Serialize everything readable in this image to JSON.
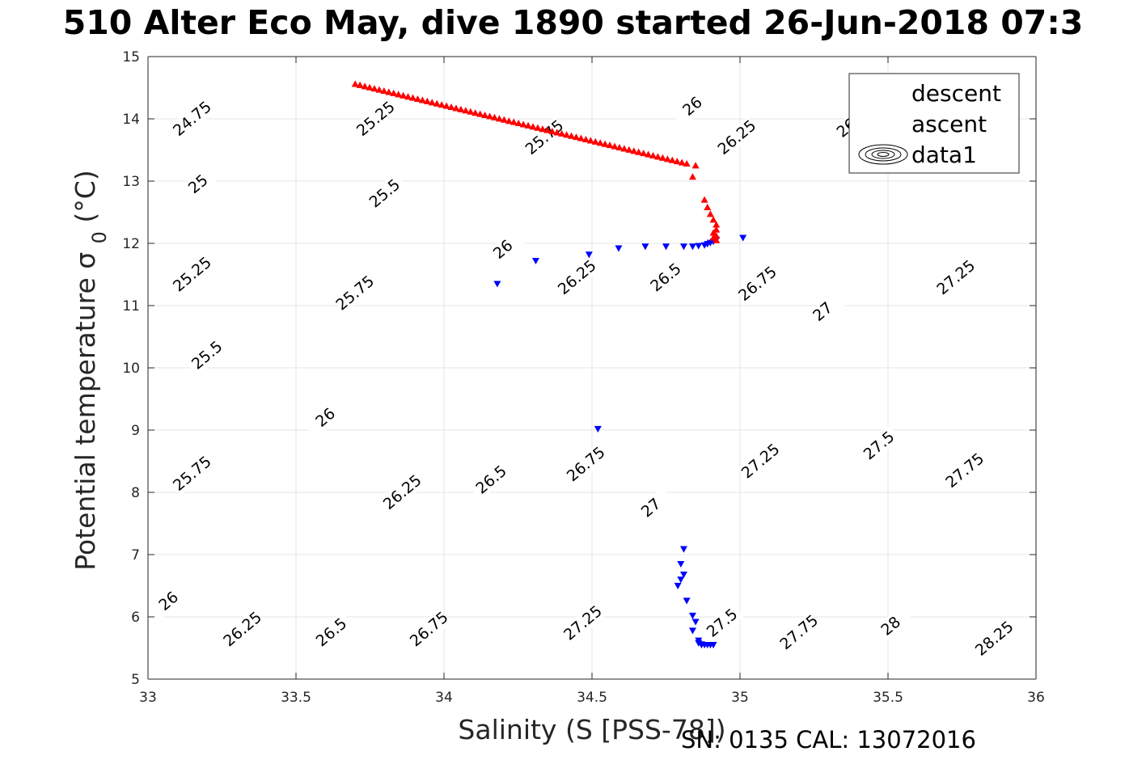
{
  "header": {
    "title": "510 Alter Eco May, dive 1890 started 26-Jun-2018 07:3",
    "footer": "SN: 0135  CAL: 13072016"
  },
  "chart_data": {
    "type": "scatter",
    "title": "510 Alter Eco May, dive 1890 started 26-Jun-2018 07:3",
    "xlabel": "Salinity (S [PSS-78])",
    "ylabel": "Potential temperature σ 0 (°C)",
    "xlim": [
      33,
      36
    ],
    "ylim": [
      5,
      15
    ],
    "xticks": [
      "33",
      "33.5",
      "34",
      "34.5",
      "35",
      "35.5",
      "36"
    ],
    "yticks": [
      "5",
      "6",
      "7",
      "8",
      "9",
      "10",
      "11",
      "12",
      "13",
      "14",
      "15"
    ],
    "grid": true,
    "legend": {
      "placement": "top-right",
      "entries": [
        "descent",
        "ascent",
        "data1"
      ]
    },
    "series": [
      {
        "name": "descent",
        "marker": "triangle-down",
        "color": "#0000ff",
        "points": [
          [
            34.18,
            11.35
          ],
          [
            34.31,
            11.72
          ],
          [
            34.49,
            11.82
          ],
          [
            34.59,
            11.92
          ],
          [
            34.68,
            11.95
          ],
          [
            34.75,
            11.95
          ],
          [
            34.81,
            11.95
          ],
          [
            34.84,
            11.95
          ],
          [
            34.86,
            11.96
          ],
          [
            34.88,
            11.97
          ],
          [
            34.89,
            11.99
          ],
          [
            34.9,
            12.01
          ],
          [
            34.91,
            12.03
          ],
          [
            34.92,
            12.06
          ],
          [
            35.01,
            12.09
          ],
          [
            34.52,
            9.02
          ],
          [
            34.81,
            7.09
          ],
          [
            34.8,
            6.85
          ],
          [
            34.81,
            6.68
          ],
          [
            34.8,
            6.6
          ],
          [
            34.79,
            6.5
          ],
          [
            34.82,
            6.26
          ],
          [
            34.84,
            6.02
          ],
          [
            34.85,
            5.92
          ],
          [
            34.84,
            5.78
          ],
          [
            34.86,
            5.62
          ],
          [
            34.87,
            5.56
          ],
          [
            34.88,
            5.55
          ],
          [
            34.89,
            5.55
          ],
          [
            34.9,
            5.55
          ],
          [
            34.91,
            5.55
          ],
          [
            34.86,
            5.58
          ],
          [
            34.87,
            5.55
          ]
        ]
      },
      {
        "name": "ascent",
        "marker": "triangle-up",
        "color": "#ff0000",
        "line_start": [
          33.7,
          14.56
        ],
        "line_end": [
          34.82,
          13.28
        ],
        "line_count": 70,
        "points": [
          [
            34.85,
            13.25
          ],
          [
            34.84,
            13.07
          ],
          [
            34.88,
            12.7
          ],
          [
            34.89,
            12.58
          ],
          [
            34.9,
            12.47
          ],
          [
            34.91,
            12.38
          ],
          [
            34.92,
            12.3
          ],
          [
            34.92,
            12.22
          ],
          [
            34.91,
            12.17
          ],
          [
            34.92,
            12.12
          ],
          [
            34.91,
            12.09
          ],
          [
            34.92,
            12.05
          ]
        ]
      }
    ],
    "contours": {
      "name": "data1",
      "levels": [
        24.75,
        25,
        25.25,
        25.5,
        25.75,
        26,
        26.25,
        26.5,
        26.75,
        27,
        27.25,
        27.5,
        27.75,
        28,
        28.25
      ],
      "labels": [
        {
          "text": "24.75",
          "s": 33.15,
          "t": 14.0
        },
        {
          "text": "25",
          "s": 33.17,
          "t": 12.95
        },
        {
          "text": "25.25",
          "s": 33.15,
          "t": 11.5
        },
        {
          "text": "25.5",
          "s": 33.2,
          "t": 10.2
        },
        {
          "text": "25.75",
          "s": 33.15,
          "t": 8.3
        },
        {
          "text": "26",
          "s": 33.07,
          "t": 6.25
        },
        {
          "text": "25.25",
          "s": 33.77,
          "t": 14.0
        },
        {
          "text": "25.5",
          "s": 33.8,
          "t": 12.8
        },
        {
          "text": "25.75",
          "s": 33.7,
          "t": 11.2
        },
        {
          "text": "26",
          "s": 33.6,
          "t": 9.2
        },
        {
          "text": "26.25",
          "s": 33.32,
          "t": 5.8
        },
        {
          "text": "25.75",
          "s": 34.34,
          "t": 13.7
        },
        {
          "text": "26",
          "s": 34.2,
          "t": 11.9
        },
        {
          "text": "26.25",
          "s": 33.86,
          "t": 8.0
        },
        {
          "text": "26.5",
          "s": 33.62,
          "t": 5.75
        },
        {
          "text": "26",
          "s": 34.84,
          "t": 14.2
        },
        {
          "text": "26.25",
          "s": 34.45,
          "t": 11.45
        },
        {
          "text": "26.5",
          "s": 34.16,
          "t": 8.2
        },
        {
          "text": "26.75",
          "s": 33.95,
          "t": 5.8
        },
        {
          "text": "26.25",
          "s": 34.99,
          "t": 13.7
        },
        {
          "text": "26.5",
          "s": 34.75,
          "t": 11.45
        },
        {
          "text": "26.75",
          "s": 34.48,
          "t": 8.45
        },
        {
          "text": "27",
          "s": 34.7,
          "t": 7.75
        },
        {
          "text": "27.25",
          "s": 34.47,
          "t": 5.9
        },
        {
          "text": "26.75",
          "s": 35.06,
          "t": 11.35
        },
        {
          "text": "27",
          "s": 35.28,
          "t": 10.9
        },
        {
          "text": "27.25",
          "s": 35.07,
          "t": 8.5
        },
        {
          "text": "27.5",
          "s": 34.94,
          "t": 5.9
        },
        {
          "text": "26",
          "s": 35.36,
          "t": 13.85
        },
        {
          "text": "27.25",
          "s": 35.73,
          "t": 11.45
        },
        {
          "text": "27.5",
          "s": 35.47,
          "t": 8.75
        },
        {
          "text": "27.75",
          "s": 35.2,
          "t": 5.75
        },
        {
          "text": "27.75",
          "s": 35.76,
          "t": 8.35
        },
        {
          "text": "28",
          "s": 35.51,
          "t": 5.85
        },
        {
          "text": "28.25",
          "s": 35.86,
          "t": 5.65
        }
      ]
    }
  },
  "colors": {
    "descent": "#0000ff",
    "ascent": "#ff0000",
    "contour": "#000000",
    "grid": "#e6e6e6",
    "axis": "#262626"
  }
}
